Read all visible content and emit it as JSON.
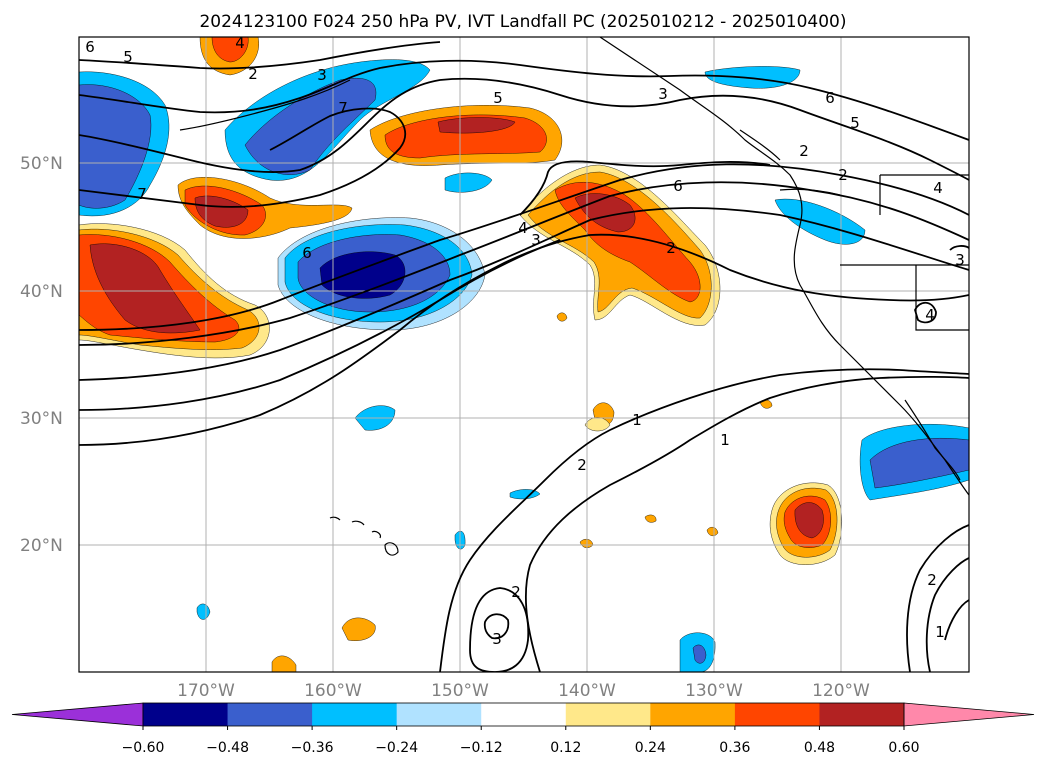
{
  "title": "2024123100 F024 250 hPa PV, IVT Landfall PC (2025010212 - 2025010400)",
  "map": {
    "lon_labels": [
      "170°W",
      "160°W",
      "150°W",
      "140°W",
      "130°W",
      "120°W"
    ],
    "lat_labels": [
      "50°N",
      "40°N",
      "30°N",
      "20°N"
    ],
    "gridlines": true
  },
  "colorbar": {
    "ticks": [
      "-0.60",
      "-0.48",
      "-0.36",
      "-0.24",
      "-0.12",
      "0.12",
      "0.24",
      "0.36",
      "0.48",
      "0.60"
    ],
    "colors": [
      "#9b30d9",
      "#00008b",
      "#3a5fcd",
      "#00bfff",
      "#b0e2ff",
      "#ffffff",
      "#ffe88a",
      "#ffa500",
      "#ff4500",
      "#b22222",
      "#ff88aa"
    ],
    "extend": "both"
  },
  "fill_colors": {
    "neg_light": "#b0e2ff",
    "neg_mid": "#00bfff",
    "neg_strong": "#3a5fcd",
    "neg_max": "#00008b",
    "pos_light": "#ffe88a",
    "pos_mid": "#ffa500",
    "pos_strong": "#ff4500",
    "pos_max": "#b22222"
  },
  "contour_labels": [
    "6",
    "5",
    "3",
    "2",
    "4",
    "5",
    "6",
    "5",
    "2",
    "2",
    "4",
    "3",
    "7",
    "7",
    "6",
    "4",
    "3",
    "6",
    "2",
    "1",
    "2",
    "1",
    "2",
    "3",
    "2",
    "1",
    "4",
    "3"
  ]
}
